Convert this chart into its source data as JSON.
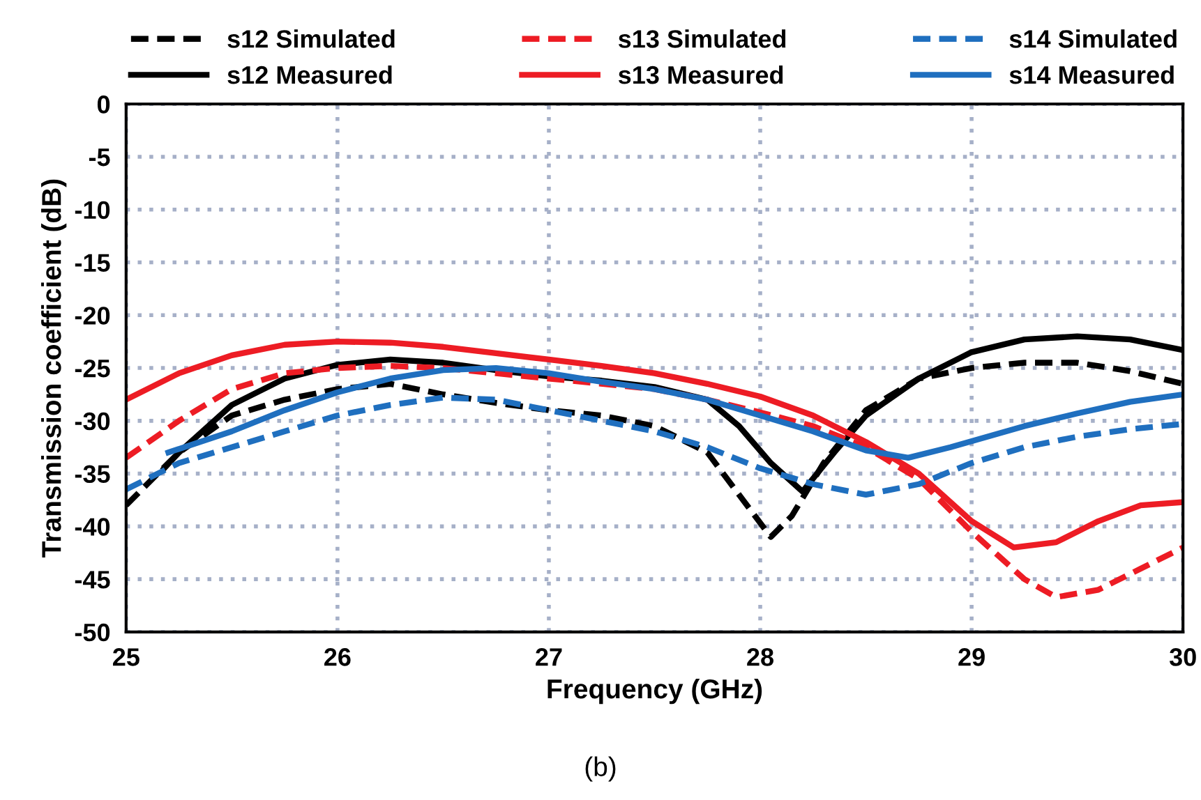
{
  "chart_data": {
    "type": "line",
    "xlabel": "Frequency (GHz)",
    "ylabel": "Transmission coefficient (dB)",
    "xlim": [
      25,
      30
    ],
    "xticks": [
      25,
      26,
      27,
      28,
      29,
      30
    ],
    "ylim": [
      -50,
      0
    ],
    "yticks": [
      -50,
      -45,
      -40,
      -35,
      -30,
      -25,
      -20,
      -15,
      -10,
      -5,
      0
    ],
    "grid": true,
    "legend": "top",
    "annotations": [
      "(b)"
    ],
    "series": [
      {
        "name": "s12 Simulated",
        "color": "#000000",
        "line_style": "dashed",
        "x": [
          25,
          25.25,
          25.5,
          25.75,
          26,
          26.25,
          26.5,
          26.75,
          27,
          27.25,
          27.5,
          27.75,
          27.9,
          28.05,
          28.15,
          28.3,
          28.5,
          28.75,
          29,
          29.25,
          29.5,
          29.75,
          30
        ],
        "values": [
          -38,
          -33,
          -29.5,
          -28,
          -27,
          -26.5,
          -27.5,
          -28.3,
          -29,
          -29.5,
          -30.5,
          -33,
          -37,
          -41,
          -39,
          -34,
          -29,
          -26,
          -25,
          -24.5,
          -24.5,
          -25.3,
          -26.5
        ]
      },
      {
        "name": "s12 Measured",
        "color": "#000000",
        "line_style": "solid",
        "x": [
          25.18,
          25.25,
          25.5,
          25.75,
          26,
          26.25,
          26.5,
          26.75,
          27,
          27.25,
          27.5,
          27.75,
          27.9,
          28.05,
          28.2,
          28.35,
          28.5,
          28.75,
          29,
          29.25,
          29.5,
          29.75,
          30
        ],
        "values": [
          -34.5,
          -33,
          -28.5,
          -26,
          -24.7,
          -24.2,
          -24.5,
          -25.2,
          -25.8,
          -26.2,
          -26.8,
          -28,
          -30.5,
          -34,
          -36.7,
          -33,
          -29.5,
          -26,
          -23.5,
          -22.3,
          -22,
          -22.3,
          -23.3
        ]
      },
      {
        "name": "s13 Simulated",
        "color": "#ed1c24",
        "line_style": "dashed",
        "x": [
          25,
          25.25,
          25.5,
          25.75,
          26,
          26.25,
          26.5,
          26.75,
          27,
          27.5,
          27.75,
          28,
          28.25,
          28.5,
          28.75,
          29,
          29.25,
          29.4,
          29.6,
          29.8,
          30
        ],
        "values": [
          -33.5,
          -30,
          -27,
          -25.5,
          -25,
          -24.8,
          -25,
          -25.5,
          -26,
          -27,
          -28,
          -29.2,
          -30.5,
          -32.5,
          -35.5,
          -40.5,
          -45,
          -46.7,
          -46,
          -44,
          -42
        ]
      },
      {
        "name": "s13 Measured",
        "color": "#ed1c24",
        "line_style": "solid",
        "x": [
          25,
          25.25,
          25.5,
          25.75,
          26,
          26.25,
          26.5,
          26.75,
          27,
          27.25,
          27.5,
          27.75,
          28,
          28.25,
          28.5,
          28.75,
          29,
          29.2,
          29.4,
          29.6,
          29.8,
          30
        ],
        "values": [
          -28,
          -25.5,
          -23.8,
          -22.8,
          -22.5,
          -22.6,
          -23,
          -23.6,
          -24.2,
          -24.8,
          -25.5,
          -26.5,
          -27.7,
          -29.5,
          -32,
          -35,
          -39.5,
          -42,
          -41.5,
          -39.5,
          -38,
          -37.7
        ]
      },
      {
        "name": "s14 Simulated",
        "color": "#1f6fbf",
        "line_style": "dashed",
        "x": [
          25,
          25.25,
          25.5,
          25.75,
          26,
          26.25,
          26.5,
          26.75,
          27,
          27.25,
          27.5,
          27.75,
          28,
          28.25,
          28.5,
          28.75,
          29,
          29.25,
          29.5,
          29.75,
          30
        ],
        "values": [
          -36.5,
          -34,
          -32.5,
          -31,
          -29.5,
          -28.5,
          -27.8,
          -28,
          -29,
          -30,
          -31,
          -32.5,
          -34.5,
          -36,
          -37,
          -36,
          -34,
          -32.5,
          -31.5,
          -30.8,
          -30.3
        ]
      },
      {
        "name": "s14 Measured",
        "color": "#1f6fbf",
        "line_style": "solid",
        "x": [
          25.2,
          25.5,
          25.75,
          26,
          26.25,
          26.5,
          26.75,
          27,
          27.25,
          27.5,
          27.75,
          28,
          28.25,
          28.5,
          28.7,
          28.9,
          29.25,
          29.5,
          29.75,
          30
        ],
        "values": [
          -33,
          -31,
          -29,
          -27.3,
          -26,
          -25.2,
          -25,
          -25.5,
          -26.3,
          -27,
          -28,
          -29.5,
          -31,
          -32.8,
          -33.5,
          -32.5,
          -30.5,
          -29.3,
          -28.2,
          -27.5
        ]
      }
    ]
  }
}
